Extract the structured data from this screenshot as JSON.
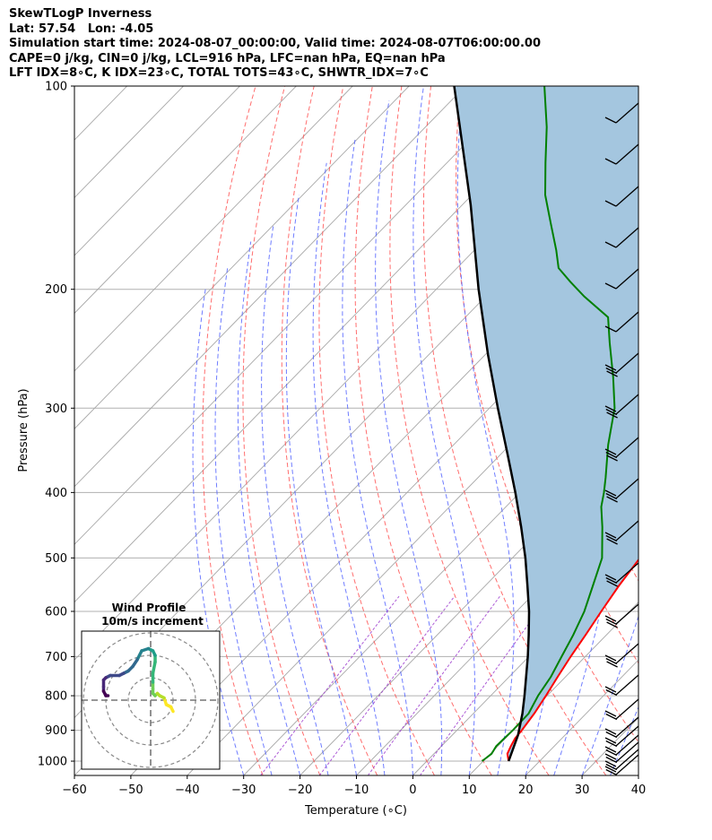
{
  "header": {
    "line1": "SkewTLogP Inverness",
    "line2": "Lat: 57.54   Lon: -4.05",
    "line3": "Simulation start time: 2024-08-07_00:00:00, Valid time: 2024-08-07T06:00:00.00",
    "line4": "CAPE=0 j/kg, CIN=0 j/kg, LCL=916 hPa, LFC=nan hPa, EQ=nan hPa",
    "line5": "LFT IDX=8∘C, K IDX=23∘C, TOTAL TOTS=43∘C, SHWTR_IDX=7∘C"
  },
  "chart_data": {
    "type": "line",
    "chart_kind": "skew-T log-P",
    "xlabel": "Temperature (∘C)",
    "ylabel": "Pressure (hPa)",
    "xlim": [
      -60,
      40
    ],
    "ylim": [
      1050,
      100
    ],
    "y_scale": "log",
    "x_ticks": [
      "−60",
      "−50",
      "−40",
      "−30",
      "−20",
      "−10",
      "0",
      "10",
      "20",
      "30",
      "40"
    ],
    "y_ticks": [
      "100",
      "200",
      "300",
      "400",
      "500",
      "600",
      "700",
      "800",
      "900",
      "1000"
    ],
    "grid": true,
    "shading": "CAPE/CIN area between temperature and parcel profile",
    "series": [
      {
        "role": "temperature",
        "color": "#ff0000",
        "points": [
          [
            1000,
            14.5
          ],
          [
            975,
            13
          ],
          [
            950,
            12.3
          ],
          [
            925,
            11.7
          ],
          [
            900,
            11.5
          ],
          [
            850,
            10.8
          ],
          [
            800,
            9.8
          ],
          [
            750,
            8.6
          ],
          [
            700,
            7.4
          ],
          [
            650,
            6.3
          ],
          [
            600,
            5.0
          ],
          [
            550,
            3.7
          ],
          [
            500,
            2.6
          ],
          [
            450,
            1.4
          ],
          [
            400,
            -1.3
          ],
          [
            350,
            -5.1
          ],
          [
            320,
            -8.0
          ],
          [
            300,
            -10.7
          ],
          [
            285,
            -13.5
          ],
          [
            275,
            -17.0
          ],
          [
            260,
            -20.0
          ],
          [
            245,
            -22.0
          ],
          [
            228,
            -24.0
          ],
          [
            210,
            -24.0
          ],
          [
            200,
            -25.8
          ],
          [
            188,
            -28.7
          ],
          [
            180,
            -31.0
          ],
          [
            165,
            -35.5
          ],
          [
            150,
            -39.5
          ],
          [
            140,
            -42.0
          ],
          [
            130,
            -44.4
          ],
          [
            124,
            -46.8
          ],
          [
            118,
            -49.2
          ],
          [
            110,
            -52.0
          ],
          [
            104,
            -53.5
          ],
          [
            100,
            -54.5
          ]
        ]
      },
      {
        "role": "dewpoint",
        "color": "#008000",
        "points": [
          [
            1000,
            9.8
          ],
          [
            975,
            10.2
          ],
          [
            950,
            9.7
          ],
          [
            925,
            9.8
          ],
          [
            900,
            9.9
          ],
          [
            850,
            9.8
          ],
          [
            800,
            8.4
          ],
          [
            750,
            7.4
          ],
          [
            700,
            5.8
          ],
          [
            650,
            4.1
          ],
          [
            600,
            2.0
          ],
          [
            550,
            -0.9
          ],
          [
            500,
            -4.1
          ],
          [
            450,
            -9.4
          ],
          [
            420,
            -13.1
          ],
          [
            400,
            -15.1
          ],
          [
            380,
            -17.4
          ],
          [
            340,
            -22.6
          ],
          [
            300,
            -27.8
          ],
          [
            270,
            -33.4
          ],
          [
            240,
            -40.0
          ],
          [
            220,
            -44.7
          ],
          [
            205,
            -52.5
          ],
          [
            195,
            -57.5
          ],
          [
            186,
            -62.0
          ],
          [
            175,
            -65.5
          ],
          [
            160,
            -71.0
          ],
          [
            145,
            -77.0
          ],
          [
            130,
            -82.5
          ],
          [
            115,
            -88.5
          ],
          [
            100,
            -96.0
          ]
        ]
      },
      {
        "role": "parcel",
        "color": "#000000",
        "points": [
          [
            1000,
            14.5
          ],
          [
            916,
            11.7
          ],
          [
            900,
            11.0
          ],
          [
            850,
            8.7
          ],
          [
            800,
            6.0
          ],
          [
            750,
            3.0
          ],
          [
            700,
            -0.2
          ],
          [
            650,
            -3.8
          ],
          [
            600,
            -7.8
          ],
          [
            550,
            -12.5
          ],
          [
            500,
            -17.7
          ],
          [
            450,
            -23.8
          ],
          [
            400,
            -30.8
          ],
          [
            350,
            -39.0
          ],
          [
            300,
            -48.5
          ],
          [
            250,
            -59.5
          ],
          [
            200,
            -72.5
          ],
          [
            150,
            -88.5
          ],
          [
            100,
            -112.0
          ]
        ]
      }
    ],
    "wind_barbs": {
      "color": "#000000"
    },
    "hodograph": {
      "title": "Wind Profile",
      "subtitle": "10m/s increment",
      "colormap": "viridis",
      "trace_uv": [
        [
          10,
          -5
        ],
        [
          9,
          -3
        ],
        [
          7,
          -2
        ],
        [
          6,
          1
        ],
        [
          4,
          2
        ],
        [
          3,
          3
        ],
        [
          2,
          2
        ],
        [
          1,
          3
        ],
        [
          1,
          5
        ],
        [
          1,
          8
        ],
        [
          1,
          12
        ],
        [
          2,
          17
        ],
        [
          2,
          20
        ],
        [
          1,
          22
        ],
        [
          -1,
          23
        ],
        [
          -4,
          22
        ],
        [
          -5,
          20
        ],
        [
          -6,
          18
        ],
        [
          -8,
          15
        ],
        [
          -10,
          13
        ],
        [
          -12,
          12
        ],
        [
          -14,
          11
        ],
        [
          -18,
          11
        ],
        [
          -20,
          10
        ],
        [
          -21,
          9
        ],
        [
          -21,
          6
        ],
        [
          -21,
          4
        ],
        [
          -20,
          2
        ],
        [
          -19,
          2
        ]
      ]
    }
  }
}
